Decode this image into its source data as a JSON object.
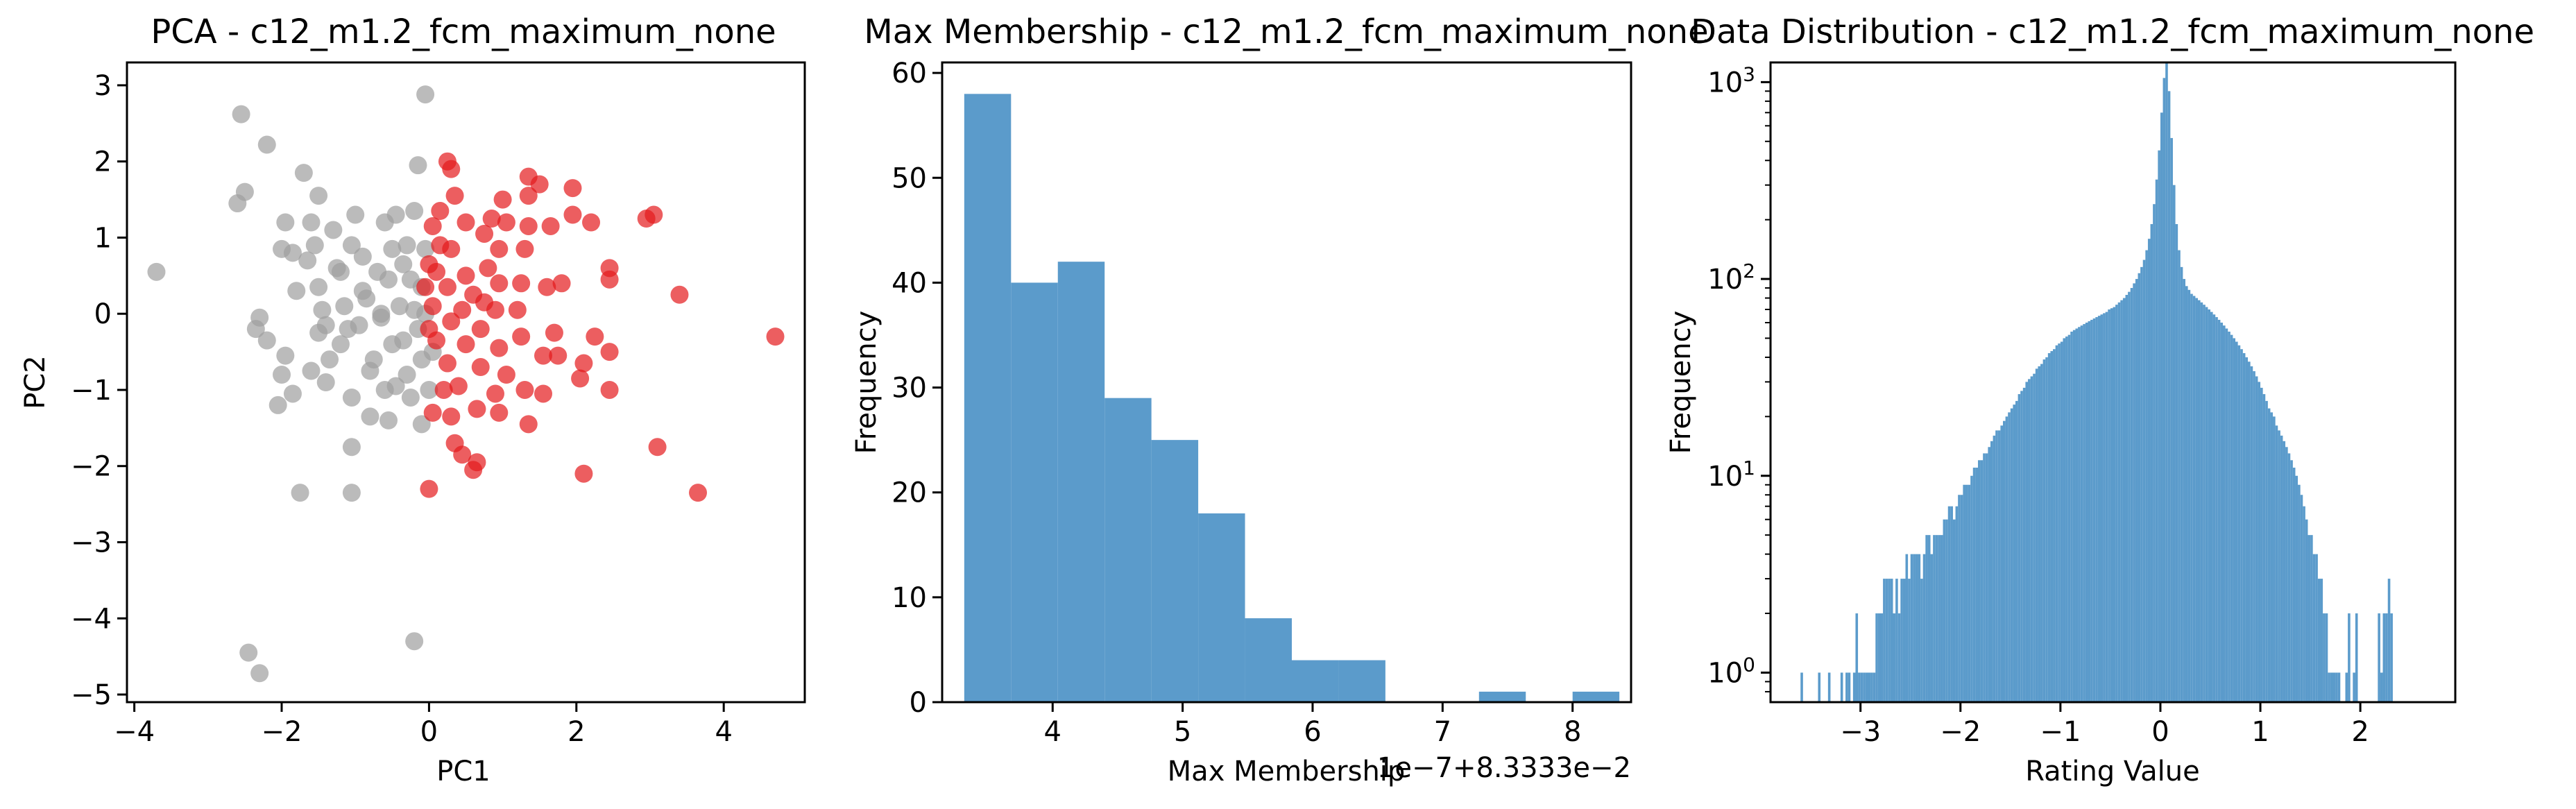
{
  "chart_data": [
    {
      "type": "scatter",
      "title": "PCA - c12_m1.2_fcm_maximum_none",
      "xlabel": "PC1",
      "ylabel": "PC2",
      "xlim": [
        -4.1,
        5.1
      ],
      "ylim": [
        -5.1,
        3.3
      ],
      "xticks": [
        -4,
        -2,
        0,
        2,
        4
      ],
      "xtick_labels": [
        "−4",
        "−2",
        "0",
        "2",
        "4"
      ],
      "yticks": [
        3,
        2,
        1,
        0,
        -1,
        -2,
        -3,
        -4,
        -5
      ],
      "ytick_labels": [
        "3",
        "2",
        "1",
        "0",
        "−1",
        "−2",
        "−3",
        "−4",
        "−5"
      ],
      "colors": {
        "grey": "#9e9e9e",
        "red": "#e41a1c"
      },
      "point_alpha": 0.7,
      "series": [
        {
          "color": "grey",
          "points": [
            [
              -3.7,
              0.55
            ],
            [
              -2.55,
              2.62
            ],
            [
              -2.2,
              2.22
            ],
            [
              -2.6,
              1.45
            ],
            [
              -2.5,
              1.6
            ],
            [
              -2.3,
              -0.05
            ],
            [
              -2.35,
              -0.2
            ],
            [
              -2.2,
              -0.35
            ],
            [
              -2.0,
              -0.8
            ],
            [
              -2.05,
              -1.2
            ],
            [
              -1.85,
              -1.05
            ],
            [
              -1.95,
              -0.55
            ],
            [
              -1.8,
              0.3
            ],
            [
              -1.85,
              0.8
            ],
            [
              -1.95,
              1.2
            ],
            [
              -1.6,
              1.2
            ],
            [
              -1.55,
              0.9
            ],
            [
              -1.65,
              0.7
            ],
            [
              -1.5,
              0.35
            ],
            [
              -1.45,
              0.05
            ],
            [
              -1.5,
              -0.25
            ],
            [
              -1.35,
              -0.6
            ],
            [
              -1.6,
              -0.75
            ],
            [
              -1.4,
              -0.9
            ],
            [
              -1.2,
              -0.4
            ],
            [
              -1.15,
              0.1
            ],
            [
              -1.25,
              0.6
            ],
            [
              -1.05,
              0.9
            ],
            [
              -1.3,
              1.1
            ],
            [
              -1.0,
              1.3
            ],
            [
              -0.9,
              0.75
            ],
            [
              -0.85,
              0.2
            ],
            [
              -0.95,
              -0.15
            ],
            [
              -0.75,
              -0.6
            ],
            [
              -1.05,
              -1.1
            ],
            [
              -0.8,
              -1.35
            ],
            [
              -1.05,
              -1.75
            ],
            [
              -0.6,
              -1.0
            ],
            [
              -0.5,
              -0.4
            ],
            [
              -0.65,
              0.0
            ],
            [
              -0.55,
              0.45
            ],
            [
              -0.5,
              0.85
            ],
            [
              -0.45,
              1.3
            ],
            [
              -0.2,
              1.35
            ],
            [
              -0.3,
              0.9
            ],
            [
              -0.25,
              0.45
            ],
            [
              -0.2,
              0.05
            ],
            [
              -0.35,
              -0.35
            ],
            [
              -0.3,
              -0.8
            ],
            [
              -0.25,
              -1.1
            ],
            [
              -0.55,
              -1.4
            ],
            [
              -0.1,
              -1.45
            ],
            [
              0.0,
              -1.0
            ],
            [
              0.05,
              -0.5
            ],
            [
              -0.05,
              0.0
            ],
            [
              -0.1,
              0.35
            ],
            [
              -0.05,
              0.85
            ],
            [
              -0.15,
              -0.2
            ],
            [
              -0.4,
              0.1
            ],
            [
              -0.7,
              0.55
            ],
            [
              -0.9,
              0.3
            ],
            [
              -1.1,
              -0.2
            ],
            [
              -0.8,
              -0.75
            ],
            [
              -1.5,
              1.55
            ],
            [
              -1.7,
              1.85
            ],
            [
              -1.75,
              -2.35
            ],
            [
              -1.05,
              -2.35
            ],
            [
              -0.2,
              -4.3
            ],
            [
              -2.45,
              -4.45
            ],
            [
              -2.3,
              -4.72
            ],
            [
              -0.05,
              2.88
            ],
            [
              -0.15,
              1.95
            ],
            [
              -0.1,
              -0.6
            ],
            [
              -0.65,
              -0.05
            ],
            [
              -0.35,
              0.65
            ],
            [
              -1.2,
              0.55
            ],
            [
              -0.6,
              1.2
            ],
            [
              -2.0,
              0.85
            ],
            [
              -1.4,
              -0.15
            ],
            [
              -0.45,
              -0.95
            ]
          ]
        },
        {
          "color": "red",
          "points": [
            [
              4.7,
              -0.3
            ],
            [
              3.65,
              -2.35
            ],
            [
              3.1,
              -1.75
            ],
            [
              3.4,
              0.25
            ],
            [
              2.95,
              1.25
            ],
            [
              3.05,
              1.3
            ],
            [
              2.45,
              0.6
            ],
            [
              2.45,
              0.45
            ],
            [
              2.45,
              -0.5
            ],
            [
              2.45,
              -1.0
            ],
            [
              2.25,
              -0.3
            ],
            [
              2.1,
              -0.65
            ],
            [
              2.05,
              -0.85
            ],
            [
              2.1,
              -2.1
            ],
            [
              1.95,
              1.65
            ],
            [
              1.95,
              1.3
            ],
            [
              2.2,
              1.2
            ],
            [
              1.65,
              1.15
            ],
            [
              1.6,
              0.35
            ],
            [
              1.7,
              -0.25
            ],
            [
              1.55,
              -0.55
            ],
            [
              1.55,
              -1.05
            ],
            [
              1.35,
              1.8
            ],
            [
              1.5,
              1.7
            ],
            [
              1.35,
              1.55
            ],
            [
              1.35,
              1.15
            ],
            [
              1.3,
              0.85
            ],
            [
              1.25,
              0.4
            ],
            [
              1.2,
              0.05
            ],
            [
              1.25,
              -0.3
            ],
            [
              1.3,
              -1.0
            ],
            [
              1.35,
              -1.45
            ],
            [
              1.0,
              1.5
            ],
            [
              1.05,
              1.2
            ],
            [
              0.95,
              0.85
            ],
            [
              0.95,
              0.4
            ],
            [
              0.9,
              0.05
            ],
            [
              0.95,
              -0.45
            ],
            [
              0.9,
              -1.05
            ],
            [
              0.95,
              -1.3
            ],
            [
              0.75,
              1.05
            ],
            [
              0.8,
              0.6
            ],
            [
              0.75,
              0.15
            ],
            [
              0.7,
              -0.2
            ],
            [
              0.7,
              -0.7
            ],
            [
              0.65,
              -1.25
            ],
            [
              0.65,
              -1.95
            ],
            [
              0.6,
              -2.05
            ],
            [
              0.45,
              -1.85
            ],
            [
              0.5,
              1.2
            ],
            [
              0.5,
              0.5
            ],
            [
              0.45,
              0.05
            ],
            [
              0.5,
              -0.4
            ],
            [
              0.4,
              -0.95
            ],
            [
              0.3,
              -1.35
            ],
            [
              0.35,
              -1.7
            ],
            [
              0.3,
              1.9
            ],
            [
              0.25,
              2.0
            ],
            [
              0.35,
              1.55
            ],
            [
              0.3,
              0.85
            ],
            [
              0.25,
              0.35
            ],
            [
              0.3,
              -0.1
            ],
            [
              0.25,
              -0.65
            ],
            [
              0.2,
              -1.0
            ],
            [
              0.15,
              1.35
            ],
            [
              0.15,
              0.9
            ],
            [
              0.1,
              0.55
            ],
            [
              0.05,
              0.1
            ],
            [
              0.1,
              -0.35
            ],
            [
              0.05,
              -1.3
            ],
            [
              0.0,
              -2.3
            ],
            [
              0.05,
              1.15
            ],
            [
              0.0,
              0.65
            ],
            [
              -0.05,
              0.35
            ],
            [
              0.0,
              -0.2
            ],
            [
              0.85,
              1.25
            ],
            [
              1.75,
              -0.55
            ],
            [
              1.8,
              0.4
            ],
            [
              1.05,
              -0.8
            ],
            [
              0.6,
              0.25
            ]
          ]
        }
      ]
    },
    {
      "type": "bar",
      "title": "Max Membership - c12_m1.2_fcm_maximum_none",
      "xlabel": "Max Membership",
      "ylabel": "Frequency",
      "offset_text": "1e−7+8.3333e−2",
      "xlim": [
        3.15,
        8.45
      ],
      "ylim": [
        0,
        61
      ],
      "xticks": [
        4,
        5,
        6,
        7,
        8
      ],
      "xtick_labels": [
        "4",
        "5",
        "6",
        "7",
        "8"
      ],
      "yticks": [
        0,
        10,
        20,
        30,
        40,
        50,
        60
      ],
      "ytick_labels": [
        "0",
        "10",
        "20",
        "30",
        "40",
        "50",
        "60"
      ],
      "color": "#5b9bcb",
      "bins": [
        [
          3.32,
          3.68,
          58
        ],
        [
          3.68,
          4.04,
          40
        ],
        [
          4.04,
          4.4,
          42
        ],
        [
          4.4,
          4.76,
          29
        ],
        [
          4.76,
          5.12,
          25
        ],
        [
          5.12,
          5.48,
          18
        ],
        [
          5.48,
          5.84,
          8
        ],
        [
          5.84,
          6.2,
          4
        ],
        [
          6.2,
          6.56,
          4
        ],
        [
          6.56,
          6.92,
          0
        ],
        [
          6.92,
          7.28,
          0
        ],
        [
          7.28,
          7.64,
          1
        ],
        [
          7.64,
          8.0,
          0
        ],
        [
          8.0,
          8.36,
          1
        ]
      ]
    },
    {
      "type": "bar",
      "title": "Data Distribution - c12_m1.2_fcm_maximum_none",
      "xlabel": "Rating Value",
      "ylabel": "Frequency",
      "yscale": "log",
      "xlim": [
        -3.9,
        2.95
      ],
      "ylim_log10": [
        -0.15,
        3.1
      ],
      "xticks": [
        -3,
        -2,
        -1,
        0,
        1,
        2
      ],
      "xtick_labels": [
        "−3",
        "−2",
        "−1",
        "0",
        "1",
        "2"
      ],
      "yticks_log10": [
        0,
        1,
        2,
        3
      ],
      "ytick_labels": [
        {
          "base": "10",
          "exp": "0"
        },
        {
          "base": "10",
          "exp": "1"
        },
        {
          "base": "10",
          "exp": "2"
        },
        {
          "base": "10",
          "exp": "3"
        }
      ],
      "color": "#5b9bcb",
      "bin_start": -3.6,
      "bin_width": 0.025,
      "values": [
        1,
        0,
        0,
        0,
        0,
        0,
        0,
        1,
        0,
        0,
        0,
        1,
        0,
        0,
        0,
        0,
        1,
        0,
        1,
        1,
        0,
        1,
        2,
        1,
        1,
        1,
        1,
        1,
        1,
        1,
        2,
        2,
        2,
        3,
        3,
        3,
        3,
        2,
        3,
        2,
        3,
        3,
        4,
        3,
        4,
        4,
        4,
        4,
        3,
        4,
        5,
        5,
        4,
        5,
        5,
        5,
        5,
        6,
        6,
        7,
        7,
        6,
        7,
        8,
        8,
        9,
        9,
        9,
        10,
        11,
        11,
        12,
        12,
        13,
        13,
        14,
        15,
        16,
        17,
        17,
        18,
        19,
        20,
        21,
        22,
        23,
        24,
        26,
        27,
        28,
        30,
        31,
        32,
        33,
        35,
        36,
        37,
        39,
        40,
        42,
        43,
        44,
        46,
        47,
        48,
        50,
        51,
        52,
        54,
        55,
        56,
        57,
        58,
        59,
        60,
        61,
        62,
        63,
        64,
        65,
        66,
        67,
        68,
        70,
        71,
        72,
        74,
        76,
        78,
        80,
        83,
        86,
        90,
        95,
        100,
        107,
        115,
        125,
        140,
        160,
        190,
        240,
        320,
        450,
        700,
        1050,
        1250,
        900,
        520,
        300,
        190,
        140,
        115,
        100,
        92,
        88,
        84,
        82,
        80,
        78,
        76,
        74,
        72,
        70,
        68,
        66,
        64,
        62,
        60,
        58,
        56,
        54,
        52,
        50,
        48,
        46,
        44,
        42,
        40,
        38,
        36,
        34,
        32,
        30,
        28,
        26,
        24,
        22,
        21,
        20,
        18,
        17,
        16,
        15,
        14,
        13,
        12,
        11,
        10,
        9,
        8,
        7,
        6,
        5,
        5,
        4,
        4,
        3,
        3,
        2,
        2,
        1,
        1,
        1,
        1,
        1,
        0,
        0,
        1,
        2,
        0,
        1,
        2,
        0,
        0,
        0,
        0,
        0,
        0,
        0,
        0,
        2,
        1,
        2,
        2,
        3,
        2
      ]
    }
  ]
}
